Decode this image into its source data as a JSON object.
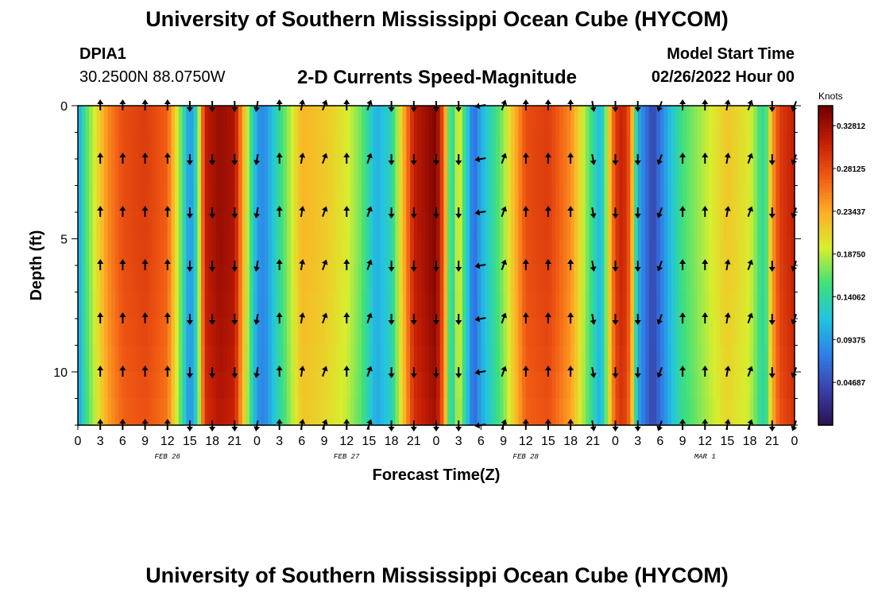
{
  "header": {
    "title": "University of Southern Mississippi Ocean Cube (HYCOM)",
    "station_id": "DPIA1",
    "coordinates": "30.2500N  88.0750W",
    "model_start_label": "Model Start Time",
    "model_start_value": "02/26/2022 Hour 00"
  },
  "footer": {
    "title": "University of Southern Mississippi Ocean Cube (HYCOM)"
  },
  "chart_data": {
    "type": "heatmap",
    "title": "2-D Currents Speed-Magnitude",
    "xlabel": "Forecast Time(Z)",
    "ylabel": "Depth (ft)",
    "x_range": [
      0,
      96
    ],
    "ylim": [
      0,
      12
    ],
    "y_inverted": true,
    "y_ticks": [
      0,
      5,
      10
    ],
    "x_ticks": [
      0,
      3,
      6,
      9,
      12,
      15,
      18,
      21,
      24,
      27,
      30,
      33,
      36,
      39,
      42,
      45,
      48,
      51,
      54,
      57,
      60,
      63,
      66,
      69,
      72,
      75,
      78,
      81,
      84,
      87,
      90,
      93,
      96
    ],
    "x_tick_labels": [
      "0",
      "3",
      "6",
      "9",
      "12",
      "15",
      "18",
      "21",
      "0",
      "3",
      "6",
      "9",
      "12",
      "15",
      "18",
      "21",
      "0",
      "3",
      "6",
      "9",
      "12",
      "15",
      "18",
      "21",
      "0",
      "3",
      "6",
      "9",
      "12",
      "15",
      "18",
      "21",
      "0"
    ],
    "date_labels": [
      {
        "hour": 12,
        "text": "FEB 26"
      },
      {
        "hour": 36,
        "text": "FEB 27"
      },
      {
        "hour": 60,
        "text": "FEB 28"
      },
      {
        "hour": 84,
        "text": "MAR 1"
      }
    ],
    "colorbar": {
      "title": "Knots",
      "min": 0,
      "max": 0.35,
      "ticks": [
        0.04687,
        0.09375,
        0.14062,
        0.1875,
        0.23437,
        0.28125,
        0.32812
      ],
      "tick_labels": [
        "0.04687",
        "0.09375",
        "0.14062",
        "0.18750",
        "0.23437",
        "0.28125",
        "0.32812"
      ],
      "colors": [
        "#2a1150",
        "#3a3fa8",
        "#2f7fe8",
        "#22c4e0",
        "#3fe07a",
        "#d8ee2e",
        "#ffae26",
        "#f15a14",
        "#c41d05",
        "#6e0000"
      ]
    },
    "speed_hours": [
      0,
      1,
      4,
      6,
      9,
      12,
      13.5,
      15,
      16,
      17,
      19,
      21,
      23,
      24,
      25,
      27,
      30,
      33,
      36,
      38,
      40,
      42,
      45,
      48,
      49,
      50,
      51,
      53,
      54,
      57,
      60,
      63,
      66,
      69,
      70,
      72,
      73,
      74,
      75,
      77,
      79,
      81,
      84,
      87,
      90,
      92,
      93,
      94,
      96
    ],
    "speed_values": [
      0.09,
      0.15,
      0.24,
      0.27,
      0.28,
      0.26,
      0.18,
      0.08,
      0.14,
      0.3,
      0.32,
      0.31,
      0.16,
      0.09,
      0.08,
      0.14,
      0.22,
      0.21,
      0.19,
      0.16,
      0.1,
      0.13,
      0.3,
      0.33,
      0.26,
      0.12,
      0.2,
      0.06,
      0.1,
      0.17,
      0.27,
      0.28,
      0.24,
      0.14,
      0.1,
      0.28,
      0.3,
      0.26,
      0.1,
      0.04,
      0.1,
      0.15,
      0.18,
      0.21,
      0.19,
      0.13,
      0.23,
      0.28,
      0.3
    ],
    "vector_depths": [
      0,
      2,
      4,
      6,
      8,
      10,
      12
    ],
    "vectors": [
      {
        "hour": 3,
        "dir": 0
      },
      {
        "hour": 6,
        "dir": 0
      },
      {
        "hour": 9,
        "dir": 0
      },
      {
        "hour": 12,
        "dir": 0
      },
      {
        "hour": 15,
        "dir": 180
      },
      {
        "hour": 18,
        "dir": 180
      },
      {
        "hour": 21,
        "dir": 180
      },
      {
        "hour": 24,
        "dir": 190
      },
      {
        "hour": 27,
        "dir": 0
      },
      {
        "hour": 30,
        "dir": 10
      },
      {
        "hour": 33,
        "dir": 20
      },
      {
        "hour": 36,
        "dir": 0
      },
      {
        "hour": 39,
        "dir": 20
      },
      {
        "hour": 42,
        "dir": 180
      },
      {
        "hour": 45,
        "dir": 180
      },
      {
        "hour": 48,
        "dir": 180
      },
      {
        "hour": 51,
        "dir": 180
      },
      {
        "hour": 54,
        "dir": 260
      },
      {
        "hour": 57,
        "dir": 20
      },
      {
        "hour": 60,
        "dir": 0
      },
      {
        "hour": 63,
        "dir": 0
      },
      {
        "hour": 66,
        "dir": 0
      },
      {
        "hour": 69,
        "dir": 170
      },
      {
        "hour": 72,
        "dir": 180
      },
      {
        "hour": 75,
        "dir": 180
      },
      {
        "hour": 78,
        "dir": 200
      },
      {
        "hour": 81,
        "dir": 0
      },
      {
        "hour": 84,
        "dir": 0
      },
      {
        "hour": 87,
        "dir": 10
      },
      {
        "hour": 90,
        "dir": 20
      },
      {
        "hour": 93,
        "dir": 180
      },
      {
        "hour": 96,
        "dir": 200
      }
    ]
  }
}
